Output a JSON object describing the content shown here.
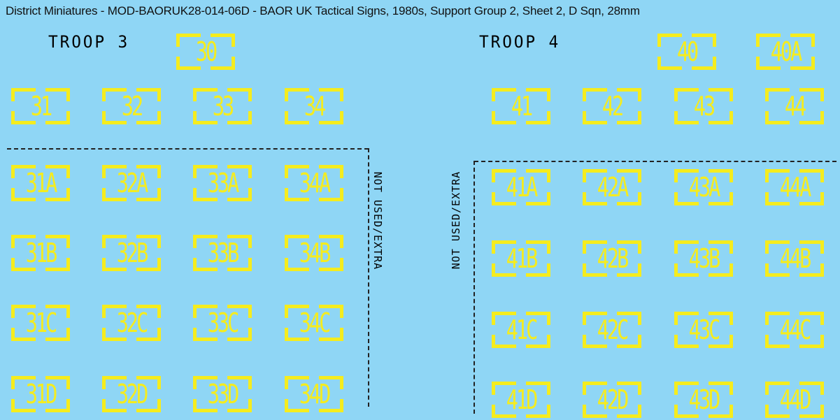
{
  "title": "District Miniatures - MOD-BAORUK28-014-06D - BAOR UK Tactical Signs, 1980s, Support Group 2, Sheet 2, D Sqn, 28mm",
  "troops": [
    {
      "label": "TROOP 3"
    },
    {
      "label": "TROOP 4"
    }
  ],
  "note": "NOT USED/EXTRA",
  "colors": {
    "background": "#8fd6f5",
    "sign": "#f5ec1e",
    "text": "#000000"
  },
  "signs": [
    "30",
    "31",
    "32",
    "33",
    "34",
    "31A",
    "32A",
    "33A",
    "34A",
    "31B",
    "32B",
    "33B",
    "34B",
    "31C",
    "32C",
    "33C",
    "34C",
    "31D",
    "32D",
    "33D",
    "34D",
    "40",
    "40A",
    "41",
    "42",
    "43",
    "44",
    "41A",
    "42A",
    "43A",
    "44A",
    "41B",
    "42B",
    "43B",
    "44B",
    "41C",
    "42C",
    "43C",
    "44C",
    "41D",
    "42D",
    "43D",
    "44D"
  ]
}
